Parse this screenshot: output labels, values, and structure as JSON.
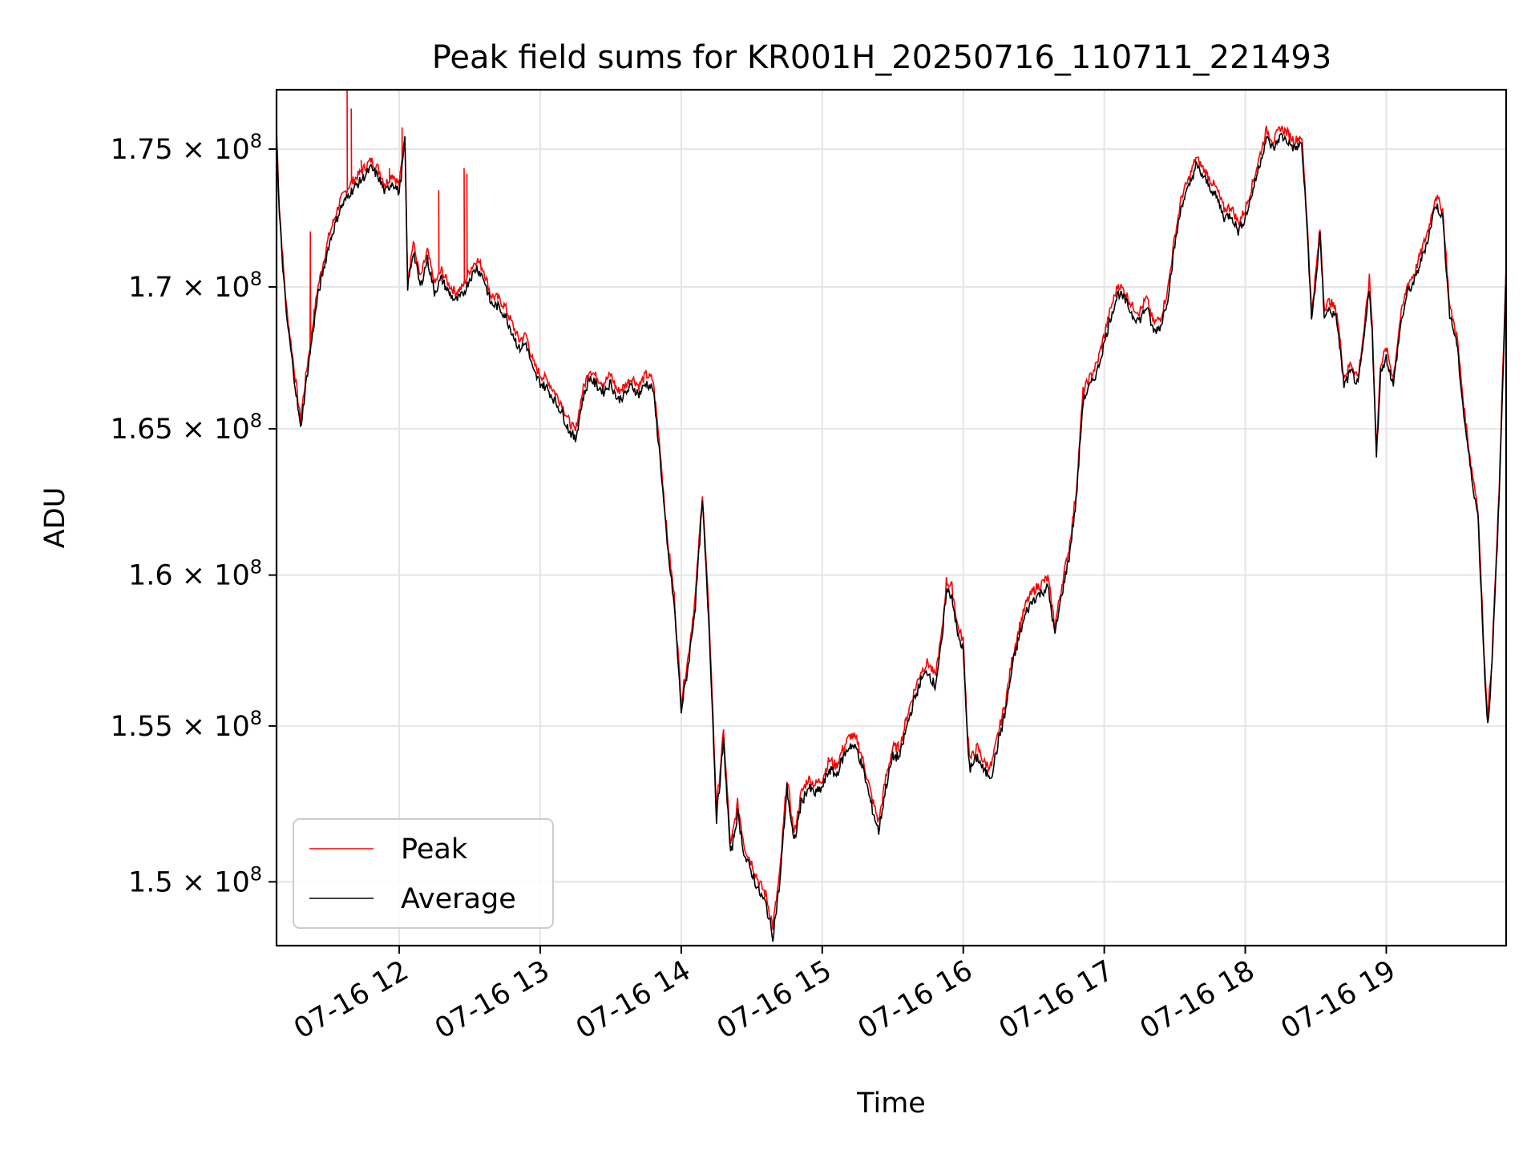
{
  "chart_data": {
    "type": "line",
    "title": "Peak field sums for KR001H_20250716_110711_221493",
    "xlabel": "Time",
    "ylabel": "ADU",
    "x_domain_hours": [
      11.13,
      19.85
    ],
    "ylim": [
      148000000,
      177200000
    ],
    "y_scale": "log",
    "grid": true,
    "legend_position": "lower-left",
    "x_ticks": [
      {
        "hour": 12,
        "label": "07-16 12"
      },
      {
        "hour": 13,
        "label": "07-16 13"
      },
      {
        "hour": 14,
        "label": "07-16 14"
      },
      {
        "hour": 15,
        "label": "07-16 15"
      },
      {
        "hour": 16,
        "label": "07-16 16"
      },
      {
        "hour": 17,
        "label": "07-16 17"
      },
      {
        "hour": 18,
        "label": "07-16 18"
      },
      {
        "hour": 19,
        "label": "07-16 19"
      }
    ],
    "y_ticks": [
      {
        "value": 150000000,
        "mantissa": "1.5"
      },
      {
        "value": 155000000,
        "mantissa": "1.55"
      },
      {
        "value": 160000000,
        "mantissa": "1.6"
      },
      {
        "value": 165000000,
        "mantissa": "1.65"
      },
      {
        "value": 170000000,
        "mantissa": "1.7"
      },
      {
        "value": 175000000,
        "mantissa": "1.75"
      }
    ],
    "y_tick_suffix": {
      "times": "×",
      "base": "10",
      "exponent": "8"
    },
    "average": {
      "name": "Average",
      "color": "#000000",
      "points": [
        [
          11.13,
          175.4
        ],
        [
          11.15,
          172.6
        ],
        [
          11.18,
          170.3
        ],
        [
          11.2,
          169.0
        ],
        [
          11.25,
          167.0
        ],
        [
          11.3,
          165.0
        ],
        [
          11.35,
          167.0
        ],
        [
          11.42,
          169.6
        ],
        [
          11.5,
          171.5
        ],
        [
          11.58,
          172.8
        ],
        [
          11.65,
          173.4
        ],
        [
          11.72,
          173.8
        ],
        [
          11.8,
          174.3
        ],
        [
          11.85,
          174.0
        ],
        [
          11.9,
          173.4
        ],
        [
          11.95,
          173.8
        ],
        [
          12.0,
          173.4
        ],
        [
          12.02,
          174.3
        ],
        [
          12.04,
          175.3
        ],
        [
          12.06,
          170.0
        ],
        [
          12.1,
          171.3
        ],
        [
          12.15,
          170.0
        ],
        [
          12.2,
          171.0
        ],
        [
          12.25,
          169.8
        ],
        [
          12.3,
          170.3
        ],
        [
          12.35,
          169.8
        ],
        [
          12.4,
          169.5
        ],
        [
          12.45,
          169.7
        ],
        [
          12.5,
          170.3
        ],
        [
          12.55,
          170.7
        ],
        [
          12.6,
          170.3
        ],
        [
          12.65,
          169.4
        ],
        [
          12.7,
          169.3
        ],
        [
          12.75,
          169.0
        ],
        [
          12.8,
          168.4
        ],
        [
          12.85,
          167.8
        ],
        [
          12.9,
          168.0
        ],
        [
          12.95,
          167.0
        ],
        [
          13.0,
          166.6
        ],
        [
          13.05,
          166.4
        ],
        [
          13.1,
          166.0
        ],
        [
          13.15,
          165.6
        ],
        [
          13.2,
          165.0
        ],
        [
          13.25,
          164.6
        ],
        [
          13.3,
          166.0
        ],
        [
          13.35,
          166.8
        ],
        [
          13.4,
          166.5
        ],
        [
          13.45,
          166.3
        ],
        [
          13.5,
          166.6
        ],
        [
          13.55,
          166.0
        ],
        [
          13.6,
          166.2
        ],
        [
          13.65,
          166.5
        ],
        [
          13.7,
          166.2
        ],
        [
          13.75,
          166.6
        ],
        [
          13.8,
          166.4
        ],
        [
          13.85,
          164.0
        ],
        [
          13.9,
          161.0
        ],
        [
          13.95,
          159.0
        ],
        [
          14.0,
          155.5
        ],
        [
          14.05,
          157.0
        ],
        [
          14.1,
          159.0
        ],
        [
          14.15,
          162.5
        ],
        [
          14.2,
          158.0
        ],
        [
          14.25,
          152.0
        ],
        [
          14.3,
          154.5
        ],
        [
          14.35,
          150.8
        ],
        [
          14.4,
          152.2
        ],
        [
          14.45,
          150.8
        ],
        [
          14.5,
          150.3
        ],
        [
          14.55,
          149.7
        ],
        [
          14.6,
          149.3
        ],
        [
          14.65,
          148.3
        ],
        [
          14.7,
          150.0
        ],
        [
          14.75,
          153.0
        ],
        [
          14.8,
          151.2
        ],
        [
          14.85,
          152.5
        ],
        [
          14.9,
          153.0
        ],
        [
          14.95,
          152.8
        ],
        [
          15.0,
          153.0
        ],
        [
          15.05,
          153.6
        ],
        [
          15.1,
          153.4
        ],
        [
          15.15,
          154.0
        ],
        [
          15.2,
          154.4
        ],
        [
          15.25,
          154.2
        ],
        [
          15.3,
          153.4
        ],
        [
          15.35,
          152.4
        ],
        [
          15.4,
          151.6
        ],
        [
          15.45,
          153.0
        ],
        [
          15.5,
          154.0
        ],
        [
          15.55,
          154.0
        ],
        [
          15.6,
          155.0
        ],
        [
          15.65,
          155.8
        ],
        [
          15.7,
          156.5
        ],
        [
          15.75,
          156.8
        ],
        [
          15.8,
          156.3
        ],
        [
          15.85,
          157.8
        ],
        [
          15.88,
          159.5
        ],
        [
          15.92,
          159.3
        ],
        [
          15.96,
          158.0
        ],
        [
          16.0,
          157.5
        ],
        [
          16.03,
          154.5
        ],
        [
          16.05,
          153.6
        ],
        [
          16.1,
          154.0
        ],
        [
          16.15,
          153.5
        ],
        [
          16.2,
          153.4
        ],
        [
          16.25,
          154.5
        ],
        [
          16.3,
          155.5
        ],
        [
          16.35,
          157.0
        ],
        [
          16.4,
          158.0
        ],
        [
          16.45,
          158.8
        ],
        [
          16.5,
          159.2
        ],
        [
          16.55,
          159.4
        ],
        [
          16.6,
          159.6
        ],
        [
          16.65,
          158.0
        ],
        [
          16.7,
          159.4
        ],
        [
          16.75,
          160.6
        ],
        [
          16.8,
          162.5
        ],
        [
          16.85,
          166.0
        ],
        [
          16.9,
          166.5
        ],
        [
          16.95,
          167.0
        ],
        [
          17.0,
          168.0
        ],
        [
          17.05,
          169.0
        ],
        [
          17.1,
          169.8
        ],
        [
          17.15,
          169.5
        ],
        [
          17.2,
          169.0
        ],
        [
          17.25,
          168.8
        ],
        [
          17.3,
          169.3
        ],
        [
          17.35,
          168.4
        ],
        [
          17.4,
          168.6
        ],
        [
          17.45,
          169.6
        ],
        [
          17.5,
          171.5
        ],
        [
          17.55,
          173.0
        ],
        [
          17.6,
          173.6
        ],
        [
          17.65,
          174.4
        ],
        [
          17.7,
          174.0
        ],
        [
          17.75,
          173.6
        ],
        [
          17.8,
          173.2
        ],
        [
          17.85,
          172.5
        ],
        [
          17.9,
          172.6
        ],
        [
          17.95,
          172.0
        ],
        [
          18.0,
          172.5
        ],
        [
          18.05,
          173.4
        ],
        [
          18.1,
          174.4
        ],
        [
          18.15,
          175.4
        ],
        [
          18.2,
          175.0
        ],
        [
          18.25,
          175.5
        ],
        [
          18.3,
          175.3
        ],
        [
          18.35,
          175.0
        ],
        [
          18.4,
          175.2
        ],
        [
          18.44,
          172.0
        ],
        [
          18.47,
          168.8
        ],
        [
          18.5,
          170.2
        ],
        [
          18.53,
          171.8
        ],
        [
          18.56,
          169.0
        ],
        [
          18.6,
          169.2
        ],
        [
          18.65,
          168.8
        ],
        [
          18.7,
          166.5
        ],
        [
          18.75,
          167.0
        ],
        [
          18.8,
          166.5
        ],
        [
          18.85,
          168.5
        ],
        [
          18.88,
          170.0
        ],
        [
          18.9,
          168.4
        ],
        [
          18.93,
          164.0
        ],
        [
          18.96,
          167.0
        ],
        [
          19.0,
          167.5
        ],
        [
          19.05,
          166.5
        ],
        [
          19.1,
          168.6
        ],
        [
          19.15,
          169.8
        ],
        [
          19.2,
          170.2
        ],
        [
          19.25,
          171.0
        ],
        [
          19.3,
          171.8
        ],
        [
          19.35,
          173.0
        ],
        [
          19.4,
          172.5
        ],
        [
          19.45,
          169.0
        ],
        [
          19.5,
          168.0
        ],
        [
          19.55,
          165.5
        ],
        [
          19.6,
          163.5
        ],
        [
          19.65,
          162.0
        ],
        [
          19.7,
          156.5
        ],
        [
          19.72,
          155.0
        ],
        [
          19.75,
          157.0
        ],
        [
          19.8,
          162.5
        ],
        [
          19.85,
          170.5
        ]
      ]
    },
    "peak": {
      "name": "Peak",
      "color": "#ff0000",
      "spikes": [
        [
          11.63,
          177.2
        ],
        [
          11.66,
          176.5
        ],
        [
          11.73,
          174.6
        ],
        [
          11.93,
          174.3
        ],
        [
          12.02,
          175.8
        ],
        [
          12.28,
          173.5
        ],
        [
          12.46,
          174.3
        ],
        [
          12.48,
          174.1
        ],
        [
          11.37,
          172.0
        ]
      ]
    }
  },
  "legend": [
    {
      "label": "Peak",
      "color": "#ff0000"
    },
    {
      "label": "Average",
      "color": "#000000"
    }
  ]
}
